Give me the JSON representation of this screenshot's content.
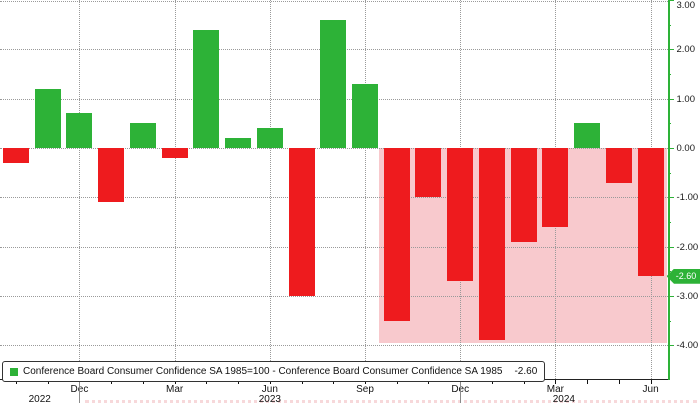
{
  "colors": {
    "positive": "#2DB237",
    "negative": "#EE1B1E",
    "shade": "#F8C9CD",
    "axis_green": "#2DB237",
    "grid": "#9A9A9A"
  },
  "legend": {
    "series_label": "Conference Board Consumer Confidence SA 1985=100 - Conference Board Consumer Confidence SA 1985",
    "value": "-2.60"
  },
  "last_value_badge": "-2.60",
  "chart_data": {
    "type": "bar",
    "title": "",
    "xlabel": "",
    "ylabel": "",
    "x": [
      "Oct 2022",
      "Nov 2022",
      "Dec 2022",
      "Jan 2023",
      "Feb 2023",
      "Mar 2023",
      "Apr 2023",
      "May 2023",
      "Jun 2023",
      "Jul 2023",
      "Aug 2023",
      "Sep 2023",
      "Oct 2023",
      "Nov 2023",
      "Dec 2023",
      "Jan 2024",
      "Feb 2024",
      "Mar 2024",
      "Apr 2024",
      "May 2024",
      "Jun 2024"
    ],
    "values": [
      -0.3,
      1.2,
      0.7,
      -1.1,
      0.5,
      -0.2,
      2.4,
      0.2,
      0.4,
      -3.0,
      2.6,
      1.3,
      -3.5,
      -1.0,
      -2.7,
      -3.9,
      -1.9,
      -1.6,
      0.5,
      -0.7,
      -2.6
    ],
    "ylim": [
      -4.7,
      3.0
    ],
    "yticks": [
      3.0,
      2.0,
      1.0,
      0.0,
      -1.0,
      -2.0,
      -3.0,
      -4.0
    ],
    "ytick_labels": [
      "3.00",
      "2.00",
      "1.00",
      "0.00",
      "-1.00",
      "-2.00",
      "-3.00",
      "-4.00"
    ],
    "yminor_ticks": [
      2.5,
      1.5,
      0.5,
      -0.5,
      -1.5,
      -2.5,
      -3.5
    ],
    "xtick_labels": [
      {
        "index": 2,
        "label": "Dec"
      },
      {
        "index": 5,
        "label": "Mar"
      },
      {
        "index": 8,
        "label": "Jun"
      },
      {
        "index": 11,
        "label": "Sep"
      },
      {
        "index": 14,
        "label": "Dec"
      },
      {
        "index": 17,
        "label": "Mar"
      },
      {
        "index": 20,
        "label": "Jun"
      }
    ],
    "year_separator_indices": [
      2,
      14
    ],
    "year_labels": [
      "2022",
      "2023",
      "2024"
    ],
    "shaded_region": {
      "start_index": 12,
      "end": "right-edge",
      "high": 0.0,
      "low": -3.95
    },
    "grid": true,
    "legend_position": "bottom-left",
    "axis_side": "right"
  }
}
